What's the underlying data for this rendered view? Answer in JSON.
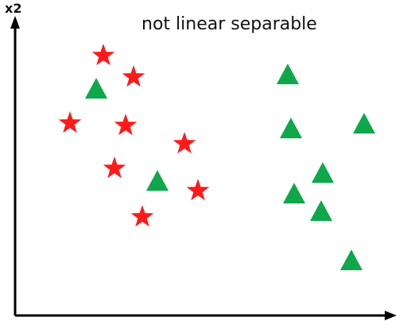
{
  "title": "not linear separable",
  "y_axis_label": "x2",
  "colors": {
    "axis": "#000000",
    "star": "#ff1a1a",
    "triangle": "#0ea84a",
    "background": "#ffffff"
  },
  "icons": {
    "class_a": "star-icon",
    "class_b": "triangle-icon"
  },
  "points": {
    "stars": [
      [
        130,
        70
      ],
      [
        168,
        97
      ],
      [
        88,
        155
      ],
      [
        158,
        158
      ],
      [
        232,
        181
      ],
      [
        144,
        212
      ],
      [
        249,
        240
      ],
      [
        179,
        273
      ]
    ],
    "triangles": [
      [
        121,
        112
      ],
      [
        362,
        94
      ],
      [
        198,
        228
      ],
      [
        366,
        162
      ],
      [
        458,
        156
      ],
      [
        406,
        218
      ],
      [
        370,
        244
      ],
      [
        404,
        266
      ],
      [
        442,
        328
      ]
    ]
  }
}
